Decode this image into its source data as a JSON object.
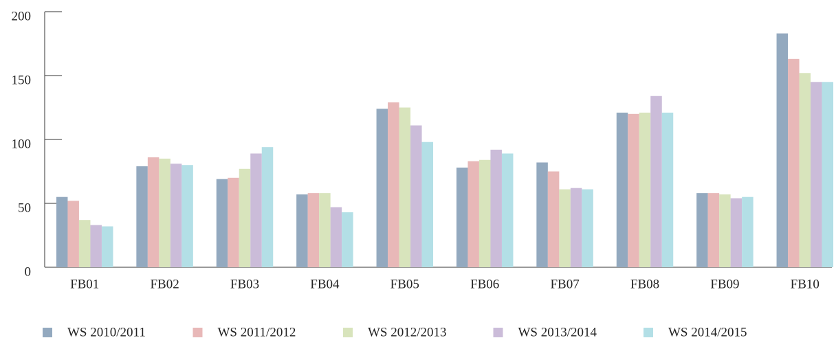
{
  "chart_data": {
    "type": "bar",
    "categories": [
      "FB01",
      "FB02",
      "FB03",
      "FB04",
      "FB05",
      "FB06",
      "FB07",
      "FB08",
      "FB09",
      "FB10"
    ],
    "series": [
      {
        "name": "WS 2010/2011",
        "color": "#93a9bf",
        "values": [
          55,
          79,
          69,
          57,
          124,
          78,
          82,
          121,
          58,
          183
        ]
      },
      {
        "name": "WS 2011/2012",
        "color": "#e8b8b8",
        "values": [
          52,
          86,
          70,
          58,
          129,
          83,
          75,
          120,
          58,
          163
        ]
      },
      {
        "name": "WS 2012/2013",
        "color": "#d8e4bc",
        "values": [
          37,
          85,
          77,
          58,
          125,
          84,
          61,
          121,
          57,
          152
        ]
      },
      {
        "name": "WS 2013/2014",
        "color": "#cbbcd9",
        "values": [
          33,
          81,
          89,
          47,
          111,
          92,
          62,
          134,
          54,
          145
        ]
      },
      {
        "name": "WS 2014/2015",
        "color": "#b3dfe6",
        "values": [
          32,
          80,
          94,
          43,
          98,
          89,
          61,
          121,
          55,
          145
        ]
      }
    ],
    "ylim": [
      0,
      200
    ],
    "yticks": [
      0,
      50,
      100,
      150,
      200
    ],
    "legend": "bottom"
  }
}
